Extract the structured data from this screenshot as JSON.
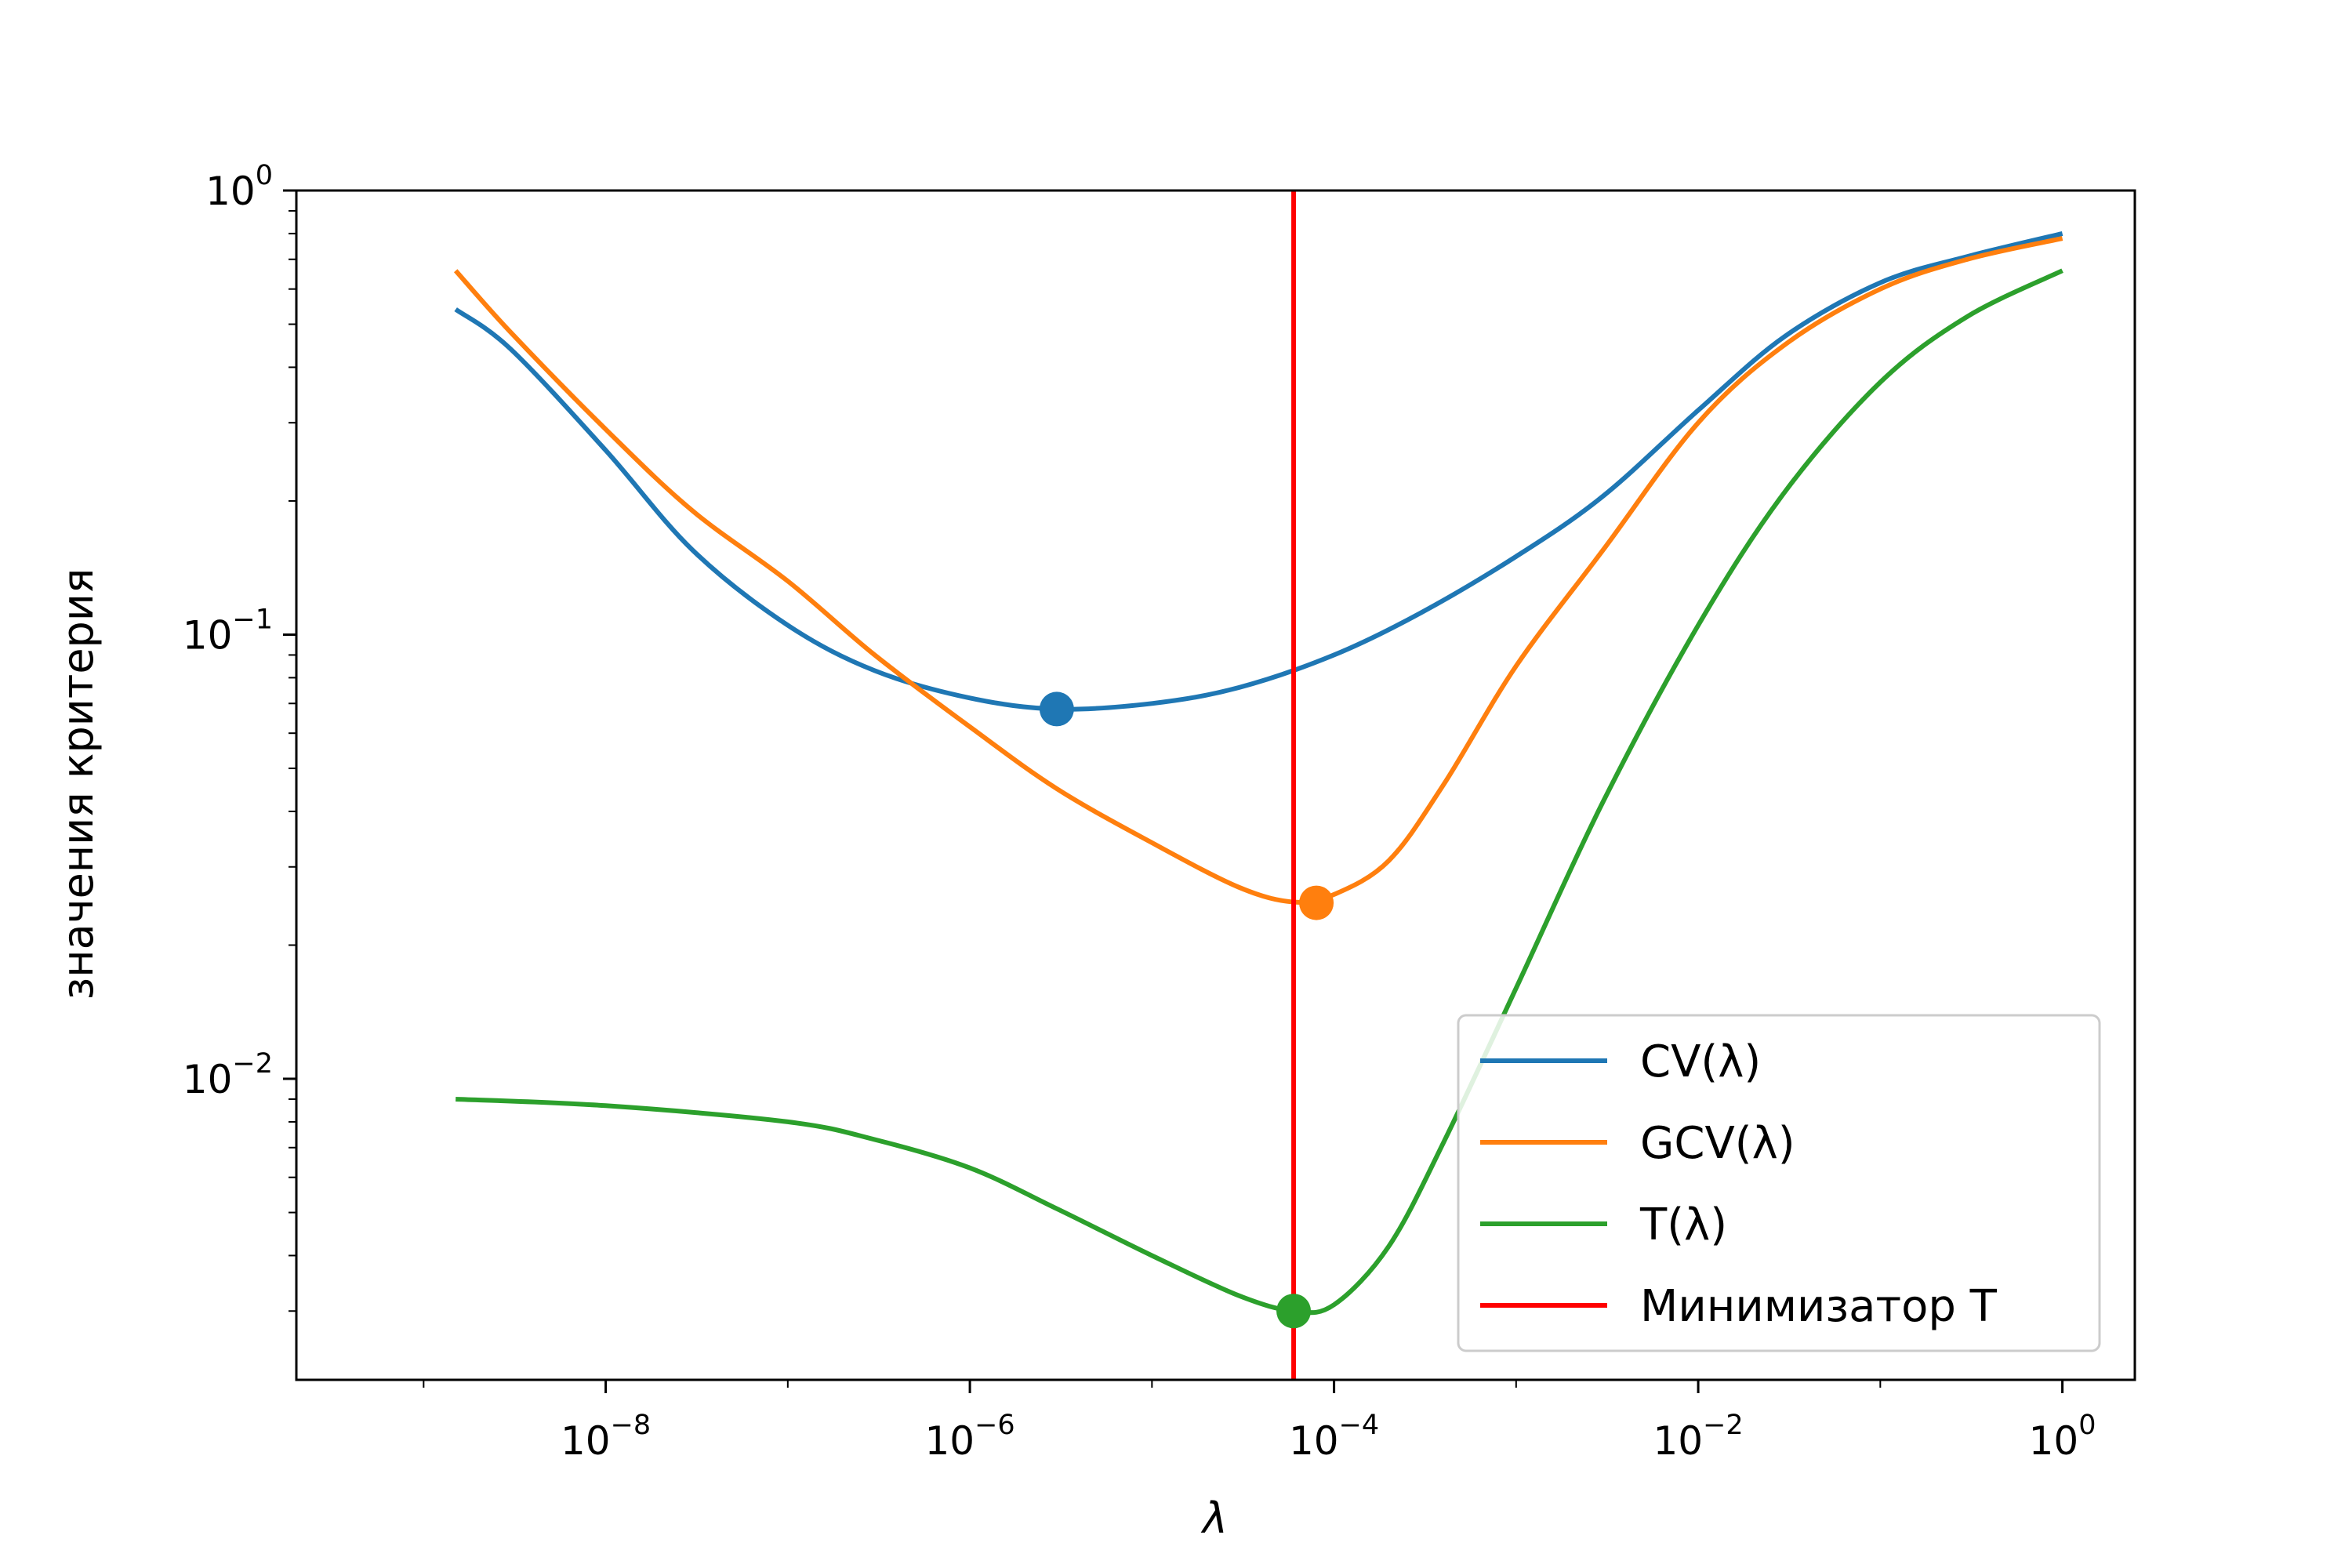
{
  "chart_data": {
    "type": "line",
    "title": "",
    "xlabel": "λ",
    "ylabel": "значения критерия",
    "xscale": "log",
    "yscale": "log",
    "xlim": [
      2e-10,
      2.5
    ],
    "ylim": [
      0.0021,
      1.0
    ],
    "grid": false,
    "legend_position": "lower-right",
    "x_ticks": [
      {
        "base": "10",
        "exp": "−8",
        "value": 1e-08
      },
      {
        "base": "10",
        "exp": "−6",
        "value": 1e-06
      },
      {
        "base": "10",
        "exp": "−4",
        "value": 0.0001
      },
      {
        "base": "10",
        "exp": "−2",
        "value": 0.01
      },
      {
        "base": "10",
        "exp": "0",
        "value": 1
      }
    ],
    "y_ticks": [
      {
        "base": "10",
        "exp": "0",
        "value": 1
      },
      {
        "base": "10",
        "exp": "−1",
        "value": 0.1
      },
      {
        "base": "10",
        "exp": "−2",
        "value": 0.01
      }
    ],
    "series": [
      {
        "name": "CV(λ)",
        "color": "#1f77b4",
        "x": [
          1.5e-09,
          3e-09,
          1e-08,
          3e-08,
          1e-07,
          3e-07,
          1e-06,
          3e-06,
          1e-05,
          3e-05,
          0.0001,
          0.0003,
          0.001,
          0.003,
          0.01,
          0.03,
          0.1,
          0.3,
          1
        ],
        "y": [
          0.54,
          0.44,
          0.26,
          0.155,
          0.105,
          0.083,
          0.072,
          0.068,
          0.07,
          0.076,
          0.09,
          0.112,
          0.15,
          0.205,
          0.32,
          0.47,
          0.62,
          0.71,
          0.8
        ],
        "minimum": {
          "x": 3e-06,
          "y": 0.068
        }
      },
      {
        "name": "GCV(λ)",
        "color": "#ff7f0e",
        "x": [
          1.5e-09,
          3e-09,
          1e-08,
          3e-08,
          1e-07,
          3e-07,
          1e-06,
          3e-06,
          1e-05,
          3e-05,
          6e-05,
          0.0001,
          0.0002,
          0.0004,
          0.001,
          0.003,
          0.01,
          0.03,
          0.1,
          0.3,
          1
        ],
        "y": [
          0.66,
          0.48,
          0.29,
          0.19,
          0.132,
          0.09,
          0.062,
          0.045,
          0.034,
          0.027,
          0.025,
          0.026,
          0.031,
          0.046,
          0.085,
          0.155,
          0.3,
          0.45,
          0.6,
          0.7,
          0.78
        ],
        "minimum": {
          "x": 8e-05,
          "y": 0.0249
        }
      },
      {
        "name": "T(λ)",
        "color": "#2ca02c",
        "x": [
          1.5e-09,
          1e-08,
          1e-07,
          3e-07,
          1e-06,
          3e-06,
          1e-05,
          3e-05,
          6e-05,
          0.0001,
          0.0002,
          0.0004,
          0.001,
          0.003,
          0.01,
          0.03,
          0.1,
          0.3,
          1
        ],
        "y": [
          0.009,
          0.0087,
          0.008,
          0.0073,
          0.0063,
          0.0051,
          0.004,
          0.00325,
          0.003,
          0.0031,
          0.0042,
          0.0072,
          0.016,
          0.042,
          0.105,
          0.21,
          0.37,
          0.52,
          0.66
        ],
        "minimum": {
          "x": 6e-05,
          "y": 0.003
        }
      },
      {
        "name": "Минимизатор T",
        "color": "#ff0000",
        "type": "vline",
        "x": 6e-05
      }
    ]
  }
}
